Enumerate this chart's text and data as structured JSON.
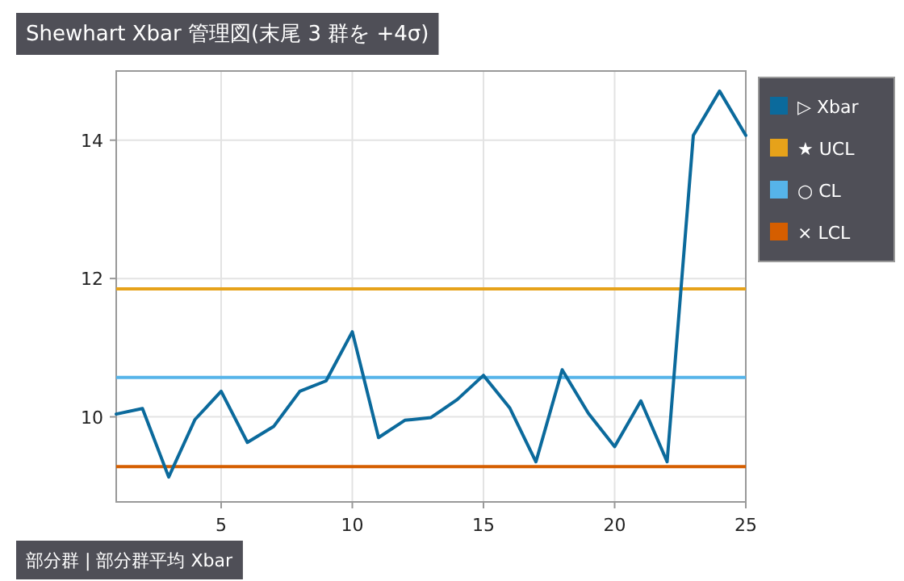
{
  "chart_data": {
    "type": "line",
    "title": "Shewhart Xbar 管理図(末尾 3 群を +4σ)",
    "annotations": [
      "部分群 | 部分群平均 Xbar"
    ],
    "x": [
      1,
      2,
      3,
      4,
      5,
      6,
      7,
      8,
      9,
      10,
      11,
      12,
      13,
      14,
      15,
      16,
      17,
      18,
      19,
      20,
      21,
      22,
      23,
      24,
      25
    ],
    "series": [
      {
        "name": "▷ Xbar",
        "color": "#0b6a9c",
        "values": [
          10.04,
          10.12,
          9.13,
          9.96,
          10.37,
          9.63,
          9.86,
          10.37,
          10.52,
          11.23,
          9.7,
          9.95,
          9.99,
          10.25,
          10.6,
          10.13,
          9.35,
          10.68,
          10.05,
          9.57,
          10.23,
          9.35,
          14.07,
          14.71,
          14.07
        ]
      }
    ],
    "ref_lines": [
      {
        "axis": "y",
        "value": 11.85,
        "label": "★ UCL",
        "color": "#e6a21a"
      },
      {
        "axis": "y",
        "value": 10.57,
        "label": "○ CL",
        "color": "#56b4e9"
      },
      {
        "axis": "y",
        "value": 9.28,
        "label": "× LCL",
        "color": "#d55e00"
      }
    ],
    "xlim": [
      1,
      25
    ],
    "xticks": [
      5,
      10,
      15,
      20,
      25
    ],
    "ylim": [
      8.77,
      15
    ],
    "yticks": [
      10,
      12,
      14
    ],
    "grid": true,
    "legend": "right"
  }
}
